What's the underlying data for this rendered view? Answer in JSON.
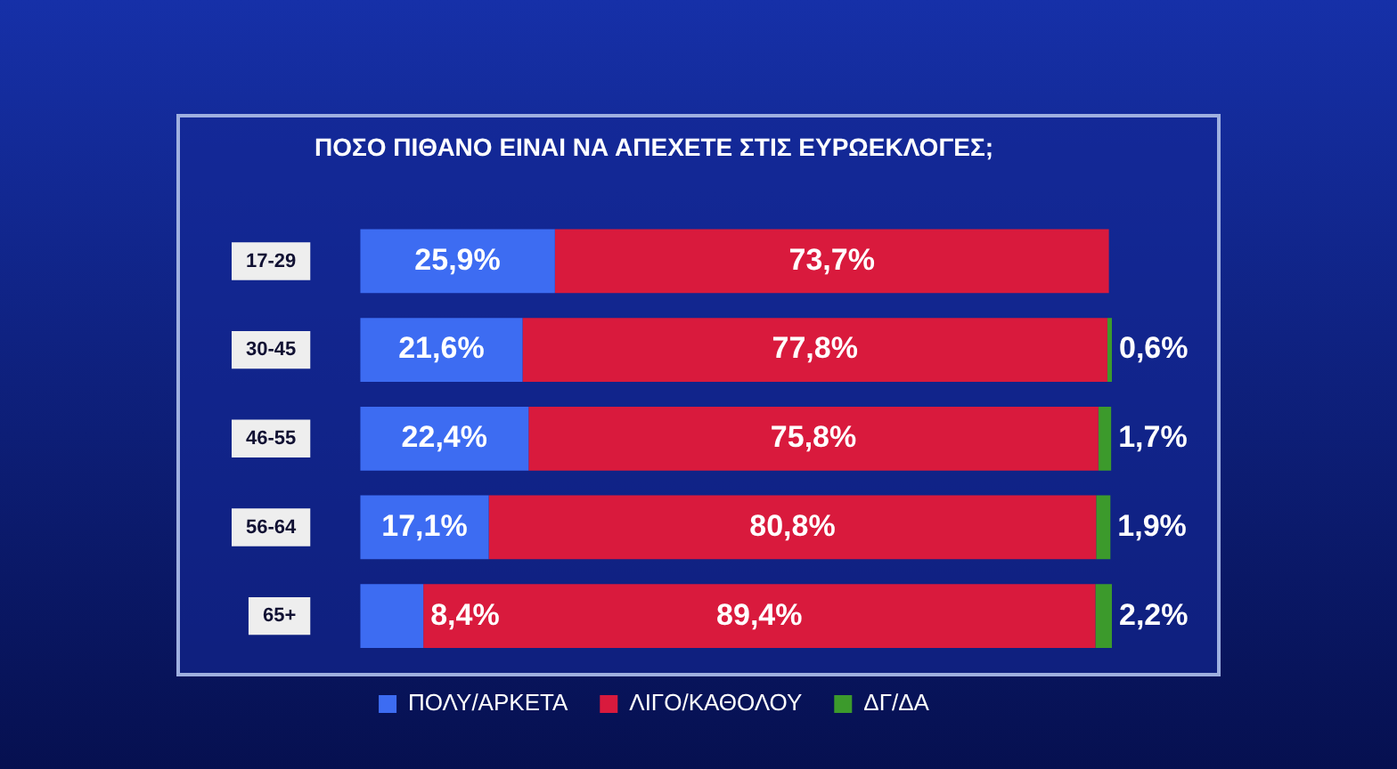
{
  "chart_data": {
    "type": "bar",
    "orientation": "horizontal",
    "stacked": true,
    "title": "ΠΟΣΟ ΠΙΘΑΝΟ ΕΙΝΑΙ ΝΑ ΑΠΕΧΕΤΕ ΣΤΙΣ ΕΥΡΩΕΚΛΟΓΕΣ;",
    "categories": [
      "17-29",
      "30-45",
      "46-55",
      "56-64",
      "65+"
    ],
    "xlim": [
      0,
      100
    ],
    "tick_labels": "y",
    "grid": false,
    "legend": "bottom",
    "series": [
      {
        "name": "ΠΟΛΥ/ΑΡΚΕΤΑ",
        "color": "#3d6cf2",
        "values": [
          25.9,
          21.6,
          22.4,
          17.1,
          8.4
        ],
        "value_labels": [
          "25,9%",
          "21,6%",
          "22,4%",
          "17,1%",
          "8,4%"
        ]
      },
      {
        "name": "ΛΙΓΟ/ΚΑΘΟΛΟΥ",
        "color": "#d91a3d",
        "values": [
          73.7,
          77.8,
          75.8,
          80.8,
          89.4
        ],
        "value_labels": [
          "73,7%",
          "77,8%",
          "75,8%",
          "80,8%",
          "89,4%"
        ]
      },
      {
        "name": "ΔΓ/ΔΑ",
        "color": "#3c9a2c",
        "values": [
          null,
          0.6,
          1.7,
          1.9,
          2.2
        ],
        "value_labels": [
          null,
          "0,6%",
          "1,7%",
          "1,9%",
          "2,2%"
        ]
      }
    ]
  }
}
